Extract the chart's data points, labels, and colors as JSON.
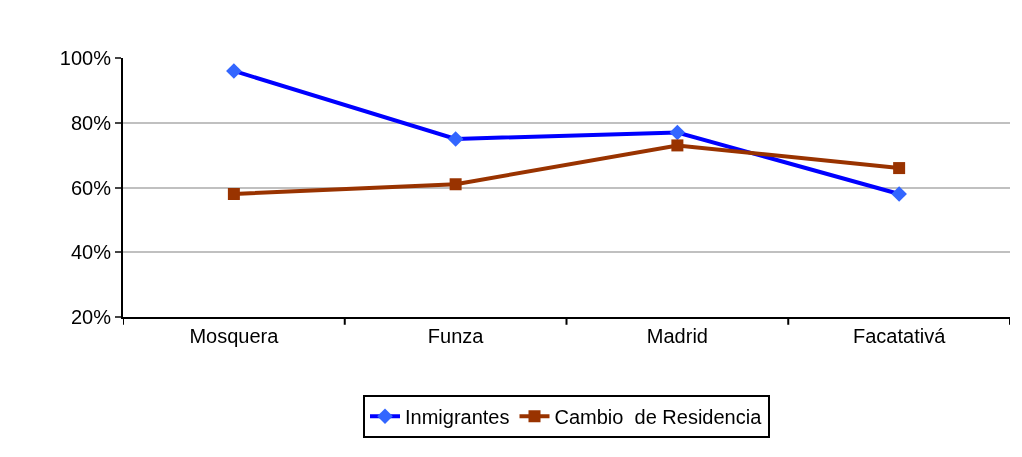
{
  "chart_data": {
    "type": "line",
    "categories": [
      "Mosquera",
      "Funza",
      "Madrid",
      "Facatativá"
    ],
    "series": [
      {
        "name": "Inmigrantes",
        "color": "#0000ff",
        "marker": "diamond",
        "values": [
          96,
          75,
          77,
          58
        ]
      },
      {
        "name": "Cambio  de Residencia",
        "color": "#993300",
        "marker": "square",
        "values": [
          58,
          61,
          73,
          66
        ]
      }
    ],
    "ylim": [
      20,
      100
    ],
    "yticks": [
      {
        "value": 20,
        "label": "20%"
      },
      {
        "value": 40,
        "label": "40%"
      },
      {
        "value": 60,
        "label": "60%"
      },
      {
        "value": 80,
        "label": "80%"
      },
      {
        "value": 100,
        "label": "100%"
      }
    ],
    "grid": "y",
    "legend": "bottom"
  }
}
